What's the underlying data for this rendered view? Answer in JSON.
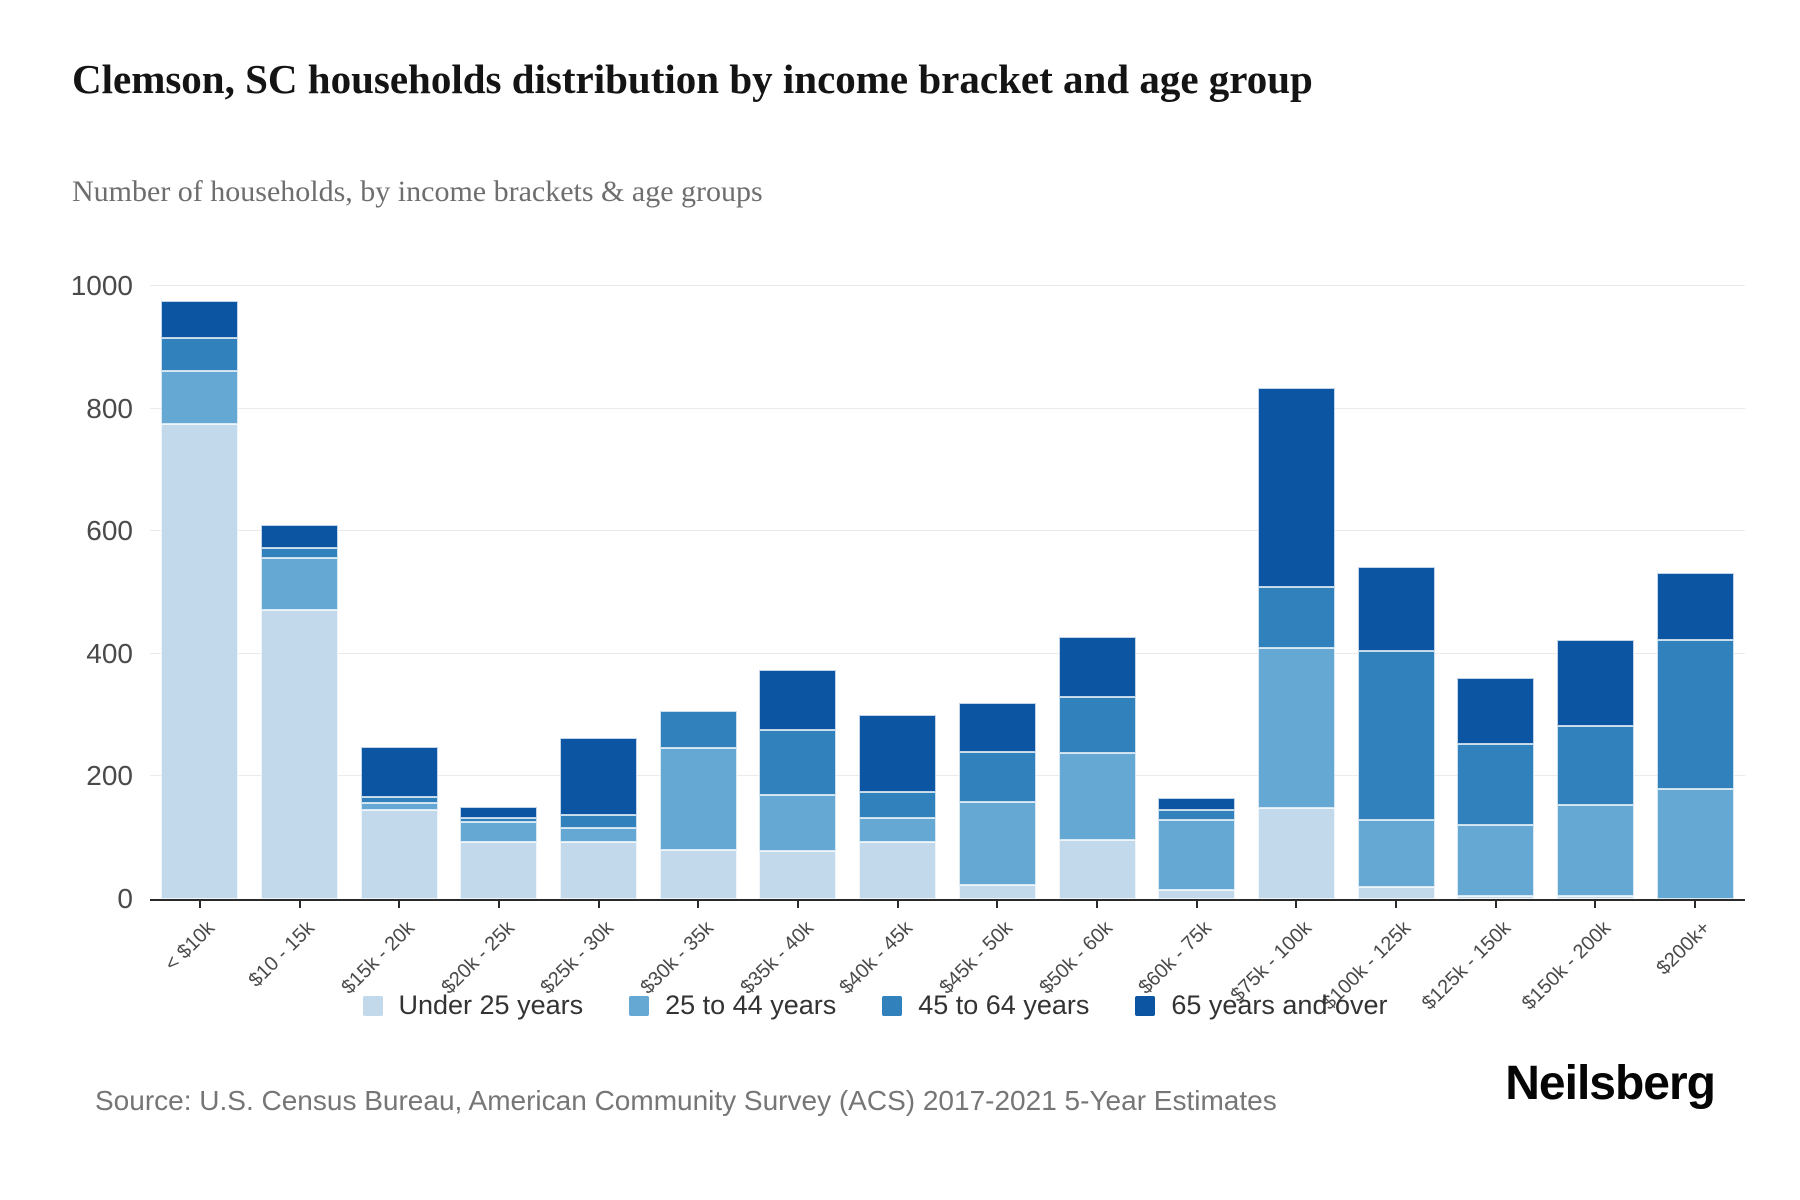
{
  "title": "Clemson, SC households distribution by income bracket and age group",
  "subtitle": "Number of households, by income brackets & age groups",
  "source": "Source: U.S. Census Bureau, American Community Survey (ACS) 2017-2021 5-Year Estimates",
  "logo": "Neilsberg",
  "chart_data": {
    "type": "bar",
    "stacked": true,
    "title": "Clemson, SC households distribution by income bracket and age group",
    "xlabel": "",
    "ylabel": "Number of households",
    "ylim": [
      0,
      1000
    ],
    "yticks": [
      0,
      200,
      400,
      600,
      800,
      1000
    ],
    "grid": true,
    "legend_position": "bottom",
    "categories": [
      "< $10k",
      "$10 - 15k",
      "$15k - 20k",
      "$20k - 25k",
      "$25k - 30k",
      "$30k - 35k",
      "$35k - 40k",
      "$40k - 45k",
      "$45k - 50k",
      "$50k - 60k",
      "$60k - 75k",
      "$75k - 100k",
      "$100k - 125k",
      "$125k - 150k",
      "$150k - 200k",
      "$200k+"
    ],
    "series": [
      {
        "name": "Under 25 years",
        "color": "#c2d8eb",
        "values": [
          775,
          472,
          145,
          93,
          93,
          80,
          78,
          93,
          23,
          96,
          15,
          149,
          20,
          5,
          5,
          0
        ]
      },
      {
        "name": "25 to 44 years",
        "color": "#65a8d4",
        "values": [
          87,
          84,
          12,
          33,
          23,
          166,
          92,
          39,
          135,
          142,
          114,
          261,
          109,
          116,
          148,
          179
        ]
      },
      {
        "name": "45 to 64 years",
        "color": "#3181bd",
        "values": [
          54,
          17,
          10,
          6,
          21,
          61,
          106,
          42,
          82,
          92,
          16,
          99,
          276,
          132,
          129,
          244
        ]
      },
      {
        "name": "65 years and over",
        "color": "#0b55a2",
        "values": [
          60,
          38,
          81,
          18,
          126,
          0,
          98,
          126,
          80,
          98,
          20,
          325,
          137,
          108,
          141,
          109
        ]
      }
    ],
    "totals": [
      976,
      611,
      248,
      150,
      263,
      307,
      374,
      300,
      320,
      428,
      165,
      834,
      542,
      361,
      423,
      532
    ]
  }
}
